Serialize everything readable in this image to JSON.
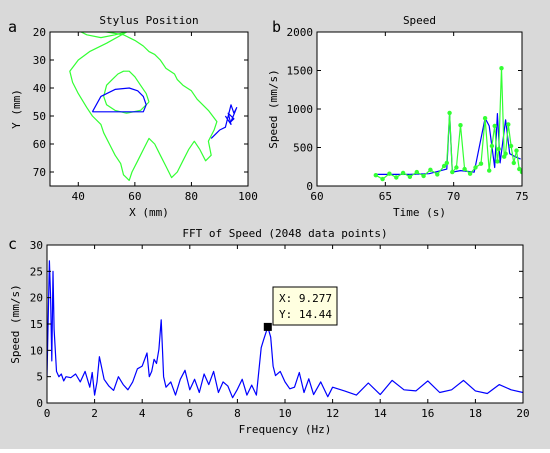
{
  "panel_letters": [
    "a",
    "b",
    "c"
  ],
  "tooltip": {
    "x_text": "X: 9.277",
    "y_text": "Y: 14.44"
  },
  "colors": {
    "figure_bg": "#d9d9d9",
    "axes_bg": "#ffffff",
    "green": "#33ff33",
    "blue": "#0000ff"
  },
  "chart_data": [
    {
      "type": "line",
      "title": "Stylus Position",
      "xlabel": "X (mm)",
      "ylabel": "Y (mm)",
      "xlim": [
        30,
        100
      ],
      "ylim": [
        20,
        75
      ],
      "y_reversed": true,
      "xticks": [
        40,
        60,
        80,
        100
      ],
      "yticks": [
        20,
        30,
        40,
        50,
        60,
        70
      ],
      "series": [
        {
          "color": "green",
          "x": [
            58,
            50,
            44,
            40,
            37,
            38,
            40,
            43,
            45,
            48,
            49,
            51,
            53,
            55,
            56,
            58,
            59,
            61,
            63,
            65,
            67,
            69,
            71,
            73,
            75,
            77,
            79,
            81,
            83,
            85,
            87,
            86,
            88,
            89,
            86,
            82,
            80,
            77,
            75,
            74,
            71,
            69,
            67,
            65,
            63,
            60,
            56,
            50,
            45,
            41,
            43,
            48,
            53,
            57,
            58
          ],
          "y": [
            19.5,
            24,
            27,
            30,
            34,
            38,
            42,
            47,
            50,
            53,
            56,
            60,
            64,
            67,
            71,
            73,
            70,
            66,
            62,
            58,
            60,
            64,
            68,
            72,
            70,
            66,
            62,
            59,
            62,
            66,
            64,
            59,
            55,
            52,
            48,
            44,
            41,
            39,
            37,
            35,
            33,
            30,
            28,
            27,
            25,
            23,
            21,
            20,
            19.5,
            20,
            21,
            22,
            21,
            20,
            19.5
          ]
        },
        {
          "color": "green",
          "x": [
            65,
            62,
            57,
            53,
            50,
            49,
            50,
            52,
            54,
            56,
            58,
            60,
            62,
            64,
            65
          ],
          "y": [
            45,
            48,
            49,
            48,
            46,
            43,
            39,
            37,
            35,
            34,
            34,
            36,
            39,
            42,
            45
          ]
        },
        {
          "color": "blue",
          "x": [
            45,
            55,
            63,
            64,
            63,
            61,
            58,
            53,
            48,
            45
          ],
          "y": [
            48.5,
            48.5,
            48.5,
            46,
            43,
            41,
            40,
            40.5,
            43,
            48.5
          ]
        },
        {
          "color": "blue",
          "x": [
            87,
            89,
            90,
            92,
            93,
            94,
            95,
            96,
            94,
            95,
            93,
            94,
            92
          ],
          "y": [
            58,
            56,
            55,
            54,
            50,
            46,
            49,
            47,
            52,
            51,
            49,
            53,
            50
          ]
        }
      ]
    },
    {
      "type": "line",
      "title": "Speed",
      "xlabel": "Time (s)",
      "ylabel": "Speed (mm/s)",
      "xlim": [
        60,
        75
      ],
      "ylim": [
        0,
        2000
      ],
      "xticks": [
        60,
        65,
        70,
        75
      ],
      "yticks": [
        0,
        500,
        1000,
        1500,
        2000
      ],
      "series": [
        {
          "color": "blue",
          "x": [
            64.3,
            65.5,
            66.8,
            68.2,
            69.5,
            69.7,
            69.9,
            70.5,
            71.5,
            72.3,
            72.6,
            73.0,
            73.2,
            73.4,
            73.8,
            74.1,
            74.5,
            74.9
          ],
          "y": [
            150,
            150,
            150,
            160,
            220,
            940,
            180,
            200,
            180,
            880,
            780,
            240,
            940,
            300,
            860,
            420,
            380,
            350
          ]
        },
        {
          "color": "green",
          "x": [
            64.3,
            64.8,
            65.3,
            65.8,
            66.3,
            66.8,
            67.3,
            67.8,
            68.3,
            68.8,
            69.3,
            69.5,
            69.7,
            69.9,
            70.2,
            70.5,
            70.8,
            71.2,
            71.6,
            72.0,
            72.3,
            72.6,
            72.8,
            73.0,
            73.2,
            73.3,
            73.5,
            73.7,
            73.8,
            74.0,
            74.2,
            74.4,
            74.6,
            74.8,
            75.0
          ],
          "y": [
            140,
            90,
            160,
            110,
            170,
            120,
            180,
            130,
            210,
            150,
            260,
            300,
            950,
            180,
            240,
            790,
            220,
            160,
            240,
            290,
            880,
            200,
            520,
            780,
            320,
            480,
            1530,
            380,
            420,
            800,
            520,
            300,
            460,
            220,
            180
          ],
          "markers": true
        }
      ]
    },
    {
      "type": "line",
      "title": "FFT of Speed (2048 data points)",
      "xlabel": "Frequency (Hz)",
      "ylabel": "Speed (mm/s)",
      "xlim": [
        0,
        20
      ],
      "ylim": [
        0,
        30
      ],
      "xticks": [
        0,
        2,
        4,
        6,
        8,
        10,
        12,
        14,
        16,
        18,
        20
      ],
      "yticks": [
        0,
        5,
        10,
        15,
        20,
        25,
        30
      ],
      "highlight": {
        "x": 9.277,
        "y": 14.44
      },
      "series": [
        {
          "color": "blue",
          "x": [
            0,
            0.1,
            0.15,
            0.2,
            0.25,
            0.3,
            0.4,
            0.5,
            0.6,
            0.7,
            0.8,
            1.0,
            1.2,
            1.4,
            1.6,
            1.8,
            1.9,
            2.0,
            2.1,
            2.2,
            2.4,
            2.6,
            2.8,
            3.0,
            3.2,
            3.4,
            3.6,
            3.8,
            4.0,
            4.2,
            4.3,
            4.4,
            4.5,
            4.6,
            4.7,
            4.8,
            4.85,
            4.9,
            5.0,
            5.2,
            5.4,
            5.6,
            5.8,
            6.0,
            6.2,
            6.4,
            6.6,
            6.8,
            7.0,
            7.2,
            7.4,
            7.6,
            7.8,
            8.0,
            8.2,
            8.4,
            8.6,
            8.8,
            9.0,
            9.1,
            9.2,
            9.277,
            9.4,
            9.5,
            9.6,
            9.8,
            10.0,
            10.2,
            10.4,
            10.6,
            10.8,
            11.0,
            11.2,
            11.5,
            11.8,
            12.0,
            12.5,
            13.0,
            13.5,
            14.0,
            14.5,
            15.0,
            15.5,
            16.0,
            16.5,
            17.0,
            17.5,
            18.0,
            18.5,
            19.0,
            19.5,
            20.0
          ],
          "y": [
            5,
            27,
            20,
            8,
            25,
            14,
            6,
            5,
            5.5,
            4.2,
            5,
            4.8,
            5.5,
            4,
            6,
            3,
            5.8,
            1.5,
            4,
            8.8,
            4.5,
            3.2,
            2.4,
            5,
            3.5,
            2.5,
            4,
            6.5,
            7,
            9.5,
            5,
            6,
            8.3,
            7.5,
            10.2,
            15.8,
            10.5,
            5,
            3,
            4,
            1.5,
            4.5,
            6.2,
            2.5,
            4.5,
            2,
            5.5,
            3.5,
            6,
            2,
            4,
            3.2,
            1,
            2.6,
            4.5,
            1.5,
            3.4,
            1.5,
            10.5,
            12,
            13.4,
            14.44,
            12.5,
            7,
            5.2,
            6,
            4,
            2.7,
            3,
            5.8,
            2,
            4.6,
            1.6,
            4,
            1.2,
            3,
            2.3,
            1.5,
            3.8,
            1.6,
            4.3,
            2.5,
            2.3,
            4.2,
            2,
            2.5,
            4.3,
            2.3,
            1.8,
            3.5,
            2.5,
            2
          ]
        }
      ]
    }
  ]
}
